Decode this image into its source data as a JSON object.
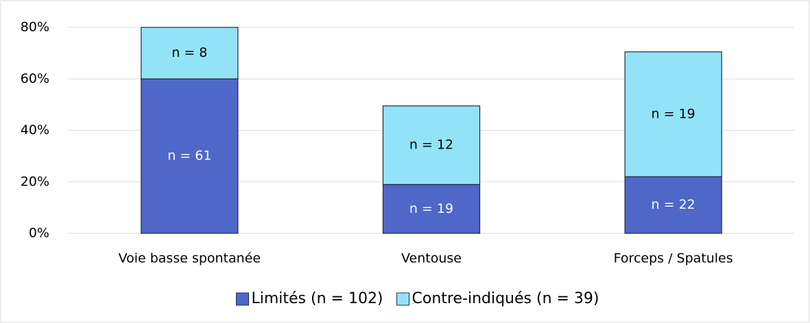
{
  "chart_data": {
    "type": "stacked_bar",
    "categories": [
      "Voie basse spontanée",
      "Ventouse",
      "Forceps / Spatules"
    ],
    "series": [
      {
        "name": "Limités (n = 102)",
        "color": "#4f67c8",
        "values": [
          60,
          19,
          22
        ],
        "annotations": [
          "n = 61",
          "n = 19",
          "n = 22"
        ],
        "annotation_color": "#ffffff"
      },
      {
        "name": "Contre-indiqués (n = 39)",
        "color": "#92e3f8",
        "values": [
          20,
          30.5,
          48.5
        ],
        "annotations": [
          "n = 8",
          "n = 12",
          "n = 19"
        ],
        "annotation_color": "#000000"
      }
    ],
    "ylim": [
      0,
      80
    ],
    "yticks": [
      {
        "value": 0,
        "label": "0%"
      },
      {
        "value": 20,
        "label": "20%"
      },
      {
        "value": 40,
        "label": "40%"
      },
      {
        "value": 60,
        "label": "60%"
      },
      {
        "value": 80,
        "label": "80%"
      }
    ],
    "grid": true,
    "legend": "bottom"
  }
}
